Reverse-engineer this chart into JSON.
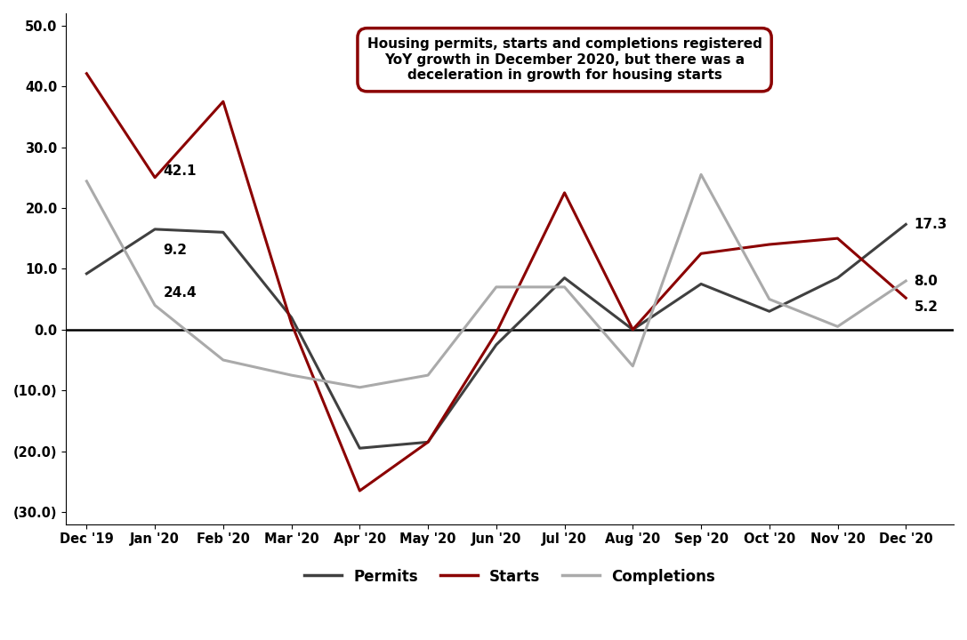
{
  "x_labels": [
    "Dec '19",
    "Jan '20",
    "Feb '20",
    "Mar '20",
    "Apr '20",
    "May '20",
    "Jun '20",
    "Jul '20",
    "Aug '20",
    "Sep '20",
    "Oct '20",
    "Nov '20",
    "Dec '20"
  ],
  "permits": [
    9.2,
    16.5,
    16.0,
    2.0,
    -19.5,
    -18.5,
    -2.5,
    8.5,
    0.0,
    7.5,
    3.0,
    8.5,
    17.3
  ],
  "starts": [
    42.1,
    25.0,
    37.5,
    1.0,
    -26.5,
    -18.5,
    -0.5,
    22.5,
    0.0,
    12.5,
    14.0,
    15.0,
    5.2
  ],
  "completions": [
    24.4,
    4.0,
    -5.0,
    -7.5,
    -9.5,
    -7.5,
    7.0,
    7.0,
    -6.0,
    25.5,
    5.0,
    0.5,
    8.0
  ],
  "permits_color": "#404040",
  "starts_color": "#8B0000",
  "completions_color": "#AAAAAA",
  "ylim": [
    -32,
    52
  ],
  "yticks": [
    -30,
    -20,
    -10,
    0,
    10,
    20,
    30,
    40,
    50
  ],
  "ytick_labels": [
    "(30.0)",
    "(20.0)",
    "(10.0)",
    "0.0",
    "10.0",
    "20.0",
    "30.0",
    "40.0",
    "50.0"
  ],
  "annotation_box_text": "Housing permits, starts and completions registered\nYoY growth in December 2020, but there was a\ndeceleration in growth for housing starts",
  "line_width": 2.2
}
